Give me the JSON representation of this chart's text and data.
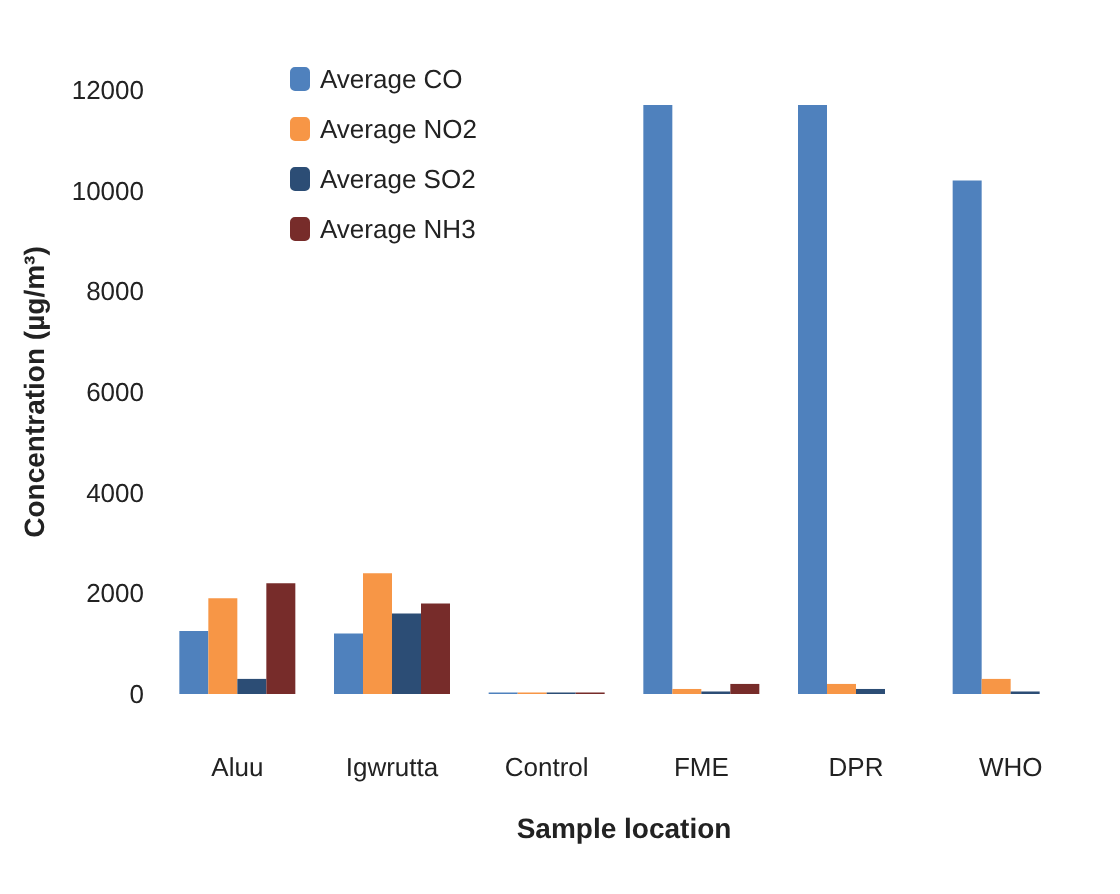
{
  "chart_data": {
    "type": "bar",
    "xlabel": "Sample location",
    "ylabel": "Concentration (µg/m³)",
    "categories": [
      "Aluu",
      "Igwrutta",
      "Control",
      "FME",
      "DPR",
      "WHO"
    ],
    "series": [
      {
        "name": "Average CO",
        "color": "#4f81bd",
        "values": [
          1250,
          1200,
          30,
          11700,
          11700,
          10200
        ]
      },
      {
        "name": "Average NO2",
        "color": "#f79646",
        "values": [
          1900,
          2400,
          30,
          100,
          200,
          300
        ]
      },
      {
        "name": "Average SO2",
        "color": "#2c4d75",
        "values": [
          300,
          1600,
          30,
          50,
          100,
          50
        ]
      },
      {
        "name": "Average NH3",
        "color": "#772c2a",
        "values": [
          2200,
          1800,
          30,
          200,
          null,
          null
        ]
      }
    ],
    "ylim": [
      0,
      12000
    ],
    "yticks": [
      0,
      2000,
      4000,
      6000,
      8000,
      10000,
      12000
    ],
    "grid": false,
    "legend": "top left"
  }
}
